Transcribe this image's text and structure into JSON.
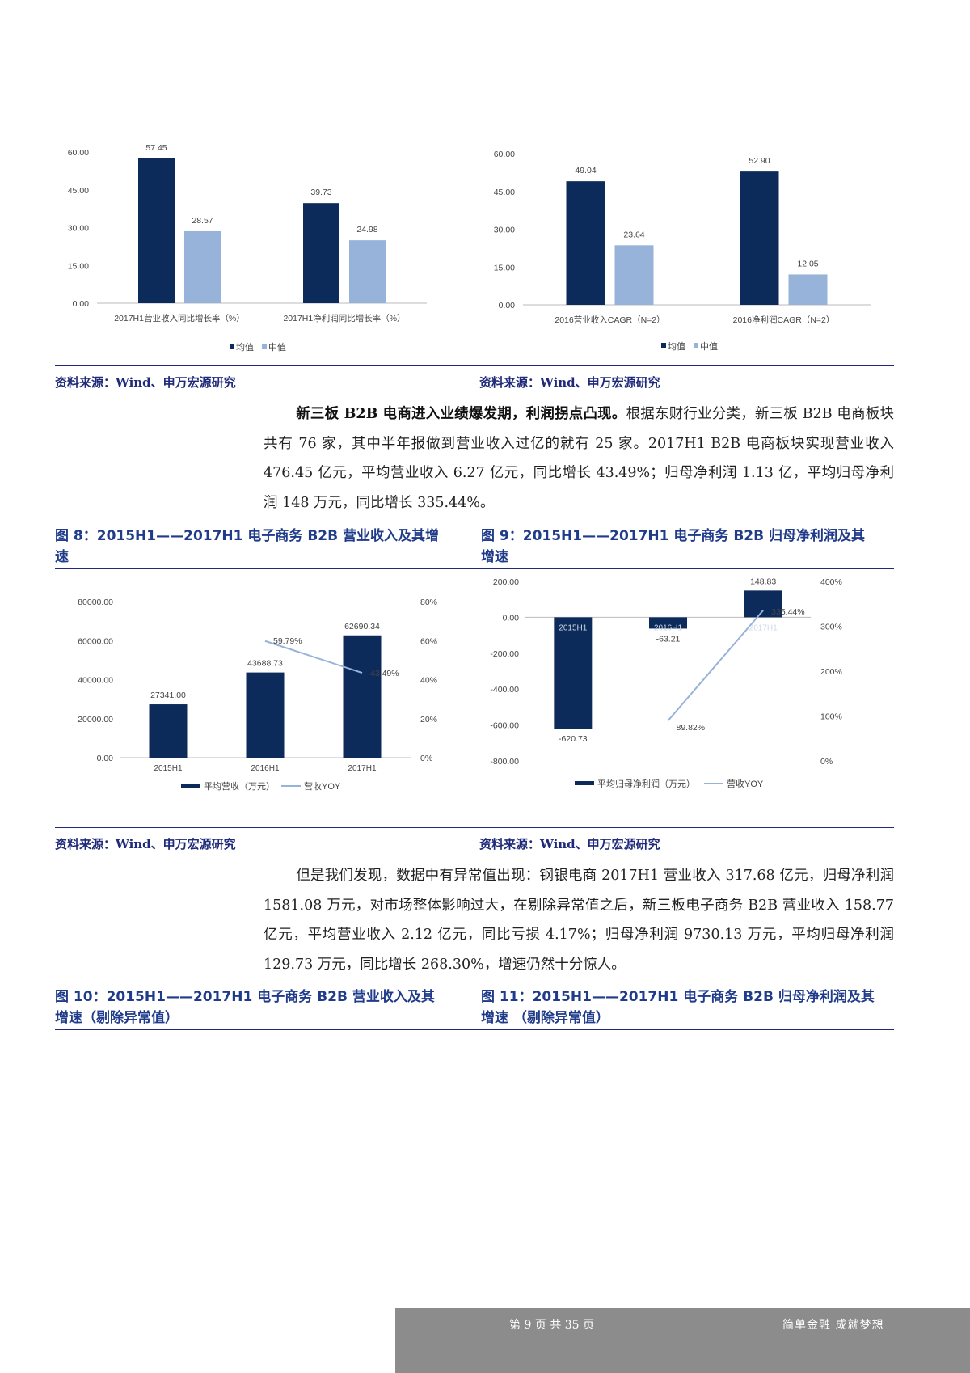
{
  "sources": {
    "fig6": "资料来源：Wind、申万宏源研究",
    "fig7": "资料来源：Wind、申万宏源研究",
    "fig8": "资料来源：Wind、申万宏源研究",
    "fig9": "资料来源：Wind、申万宏源研究"
  },
  "paragraph1": {
    "lead": "新三板 B2B 电商进入业绩爆发期，利润拐点凸现。",
    "body": "根据东财行业分类，新三板 B2B 电商板块共有 76 家，其中半年报做到营业收入过亿的就有 25 家。2017H1 B2B 电商板块实现营业收入 476.45 亿元，平均营业收入 6.27 亿元，同比增长 43.49%；归母净利润 1.13 亿，平均归母净利润 148 万元，同比增长 335.44%。"
  },
  "paragraph2": {
    "body": "但是我们发现，数据中有异常值出现：钢银电商 2017H1 营业收入 317.68 亿元，归母净利润 1581.08 万元，对市场整体影响过大，在剔除异常值之后，新三板电子商务 B2B 营业收入 158.77 亿元，平均营业收入 2.12 亿元，同比亏损 4.17%；归母净利润 9730.13 万元，平均归母净利润 129.73 万元，同比增长 268.30%，增速仍然十分惊人。"
  },
  "figures": {
    "fig8": "图 8：2015H1——2017H1 电子商务 B2B 营业收入及其增速",
    "fig9": "图 9：2015H1——2017H1 电子商务 B2B 归母净利润及其增速",
    "fig10": "图 10：2015H1——2017H1 电子商务 B2B 营业收入及其增速（剔除异常值）",
    "fig11": "图 11：2015H1——2017H1 电子商务 B2B 归母净利润及其增速 （剔除异常值）"
  },
  "footer": {
    "page": "第 9 页 共 35 页",
    "slogan": "简单金融 成就梦想"
  },
  "colors": {
    "dark": "#0d2b5a",
    "light": "#97b3d9",
    "rule": "#1f2a7a"
  },
  "chart_data": [
    {
      "type": "bar",
      "categories": [
        "2017H1营业收入同比增长率（%）",
        "2017H1净利润同比增长率（%）"
      ],
      "series": [
        {
          "name": "均值",
          "values": [
            57.45,
            39.73
          ],
          "labels": [
            "57.45",
            "39.73"
          ]
        },
        {
          "name": "中值",
          "values": [
            28.57,
            24.98
          ],
          "labels": [
            "28.57",
            "24.98"
          ]
        }
      ],
      "ylim": [
        0,
        60
      ],
      "yticks": [
        "0.00",
        "15.00",
        "30.00",
        "45.00",
        "60.00"
      ],
      "legend": "bottom"
    },
    {
      "type": "bar",
      "categories": [
        "2016营业收入CAGR（N=2）",
        "2016净利润CAGR（N=2）"
      ],
      "series": [
        {
          "name": "均值",
          "values": [
            49.04,
            52.9
          ],
          "labels": [
            "49.04",
            "52.90"
          ]
        },
        {
          "name": "中值",
          "values": [
            23.64,
            12.05
          ],
          "labels": [
            "23.64",
            "12.05"
          ]
        }
      ],
      "ylim": [
        0,
        60
      ],
      "yticks": [
        "0.00",
        "15.00",
        "30.00",
        "45.00",
        "60.00"
      ],
      "legend": "bottom"
    },
    {
      "type": "bar",
      "categories": [
        "2015H1",
        "2016H1",
        "2017H1"
      ],
      "series": [
        {
          "name": "平均营收（万元）",
          "axis": "left",
          "values": [
            27341.0,
            43688.73,
            62690.34
          ],
          "labels": [
            "27341.00",
            "43688.73",
            "62690.34"
          ]
        },
        {
          "name": "营收YOY",
          "type": "line",
          "axis": "right",
          "x": [
            "2016H1",
            "2017H1"
          ],
          "values": [
            59.79,
            43.49
          ],
          "labels": [
            "59.79%",
            "43.49%"
          ]
        }
      ],
      "ylim": [
        0,
        80000
      ],
      "yticks": [
        "0.00",
        "20000.00",
        "40000.00",
        "60000.00",
        "80000.00"
      ],
      "y2lim": [
        0,
        80
      ],
      "y2ticks": [
        "0%",
        "20%",
        "40%",
        "60%",
        "80%"
      ],
      "legend": "bottom"
    },
    {
      "type": "bar",
      "categories": [
        "2015H1",
        "2016H1",
        "2017H1"
      ],
      "series": [
        {
          "name": "平均归母净利润（万元）",
          "axis": "left",
          "values": [
            -620.73,
            -63.21,
            148.83
          ],
          "labels": [
            "-620.73",
            "-63.21",
            "148.83"
          ]
        },
        {
          "name": "营收YOY",
          "type": "line",
          "axis": "right",
          "x": [
            "2016H1",
            "2017H1"
          ],
          "values": [
            89.82,
            335.44
          ],
          "labels": [
            "89.82%",
            "335.44%"
          ]
        }
      ],
      "ylim": [
        -800,
        200
      ],
      "yticks": [
        "-800.00",
        "-600.00",
        "-400.00",
        "-200.00",
        "0.00",
        "200.00"
      ],
      "y2lim": [
        0,
        400
      ],
      "y2ticks": [
        "0%",
        "100%",
        "200%",
        "300%",
        "400%"
      ],
      "legend": "bottom"
    }
  ]
}
